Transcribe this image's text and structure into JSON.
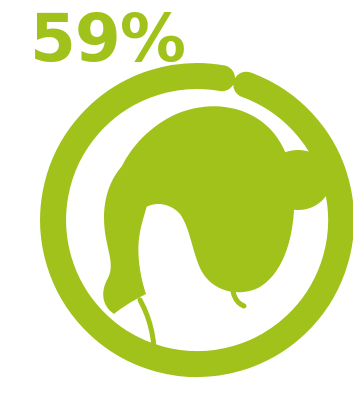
{
  "stat": {
    "value": 59,
    "label": "59%"
  },
  "colors": {
    "accent": "#a0c21b",
    "background": "#ffffff"
  },
  "icon": "woman-silhouette-icon"
}
